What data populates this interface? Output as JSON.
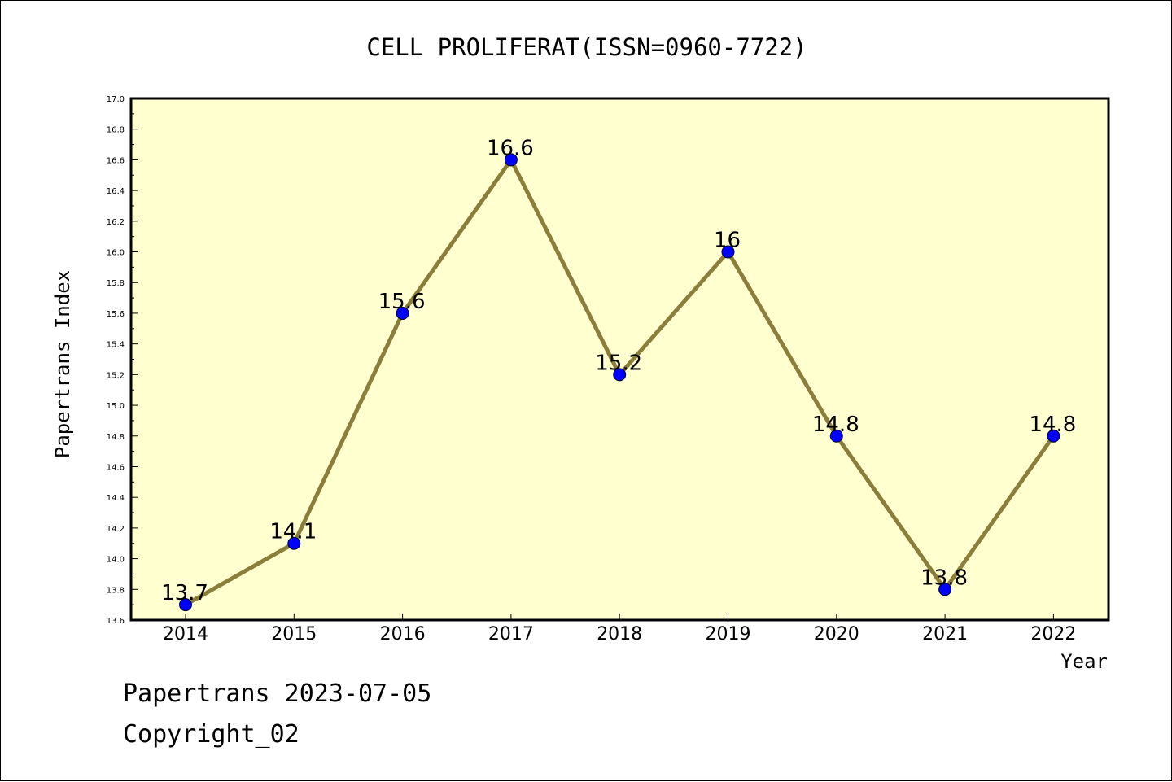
{
  "chart_data": {
    "type": "line",
    "title": "CELL PROLIFERAT(ISSN=0960-7722)",
    "xlabel": "Year",
    "ylabel": "Papertrans Index",
    "categories": [
      "2014",
      "2015",
      "2016",
      "2017",
      "2018",
      "2019",
      "2020",
      "2021",
      "2022"
    ],
    "series": [
      {
        "values": [
          13.7,
          14.1,
          15.6,
          16.6,
          15.2,
          16.0,
          14.8,
          13.8,
          14.8
        ],
        "data_labels": [
          "13.7",
          "14.1",
          "15.6",
          "16.6",
          "15.2",
          "16",
          "14.8",
          "13.8",
          "14.8"
        ]
      }
    ],
    "ylim": [
      13.6,
      17.0
    ],
    "yticks": [
      "13.6",
      "13.8",
      "14.0",
      "14.2",
      "14.4",
      "14.6",
      "14.8",
      "15.0",
      "15.2",
      "15.4",
      "15.6",
      "15.8",
      "16.0",
      "16.2",
      "16.4",
      "16.6",
      "16.8",
      "17.0"
    ],
    "grid": false,
    "colors": {
      "plot_background": "#ffffd0",
      "line": "#8b7d3a",
      "marker": "#0000ff"
    }
  },
  "footer": {
    "line1": "Papertrans 2023-07-05",
    "line2": "Copyright_02"
  }
}
